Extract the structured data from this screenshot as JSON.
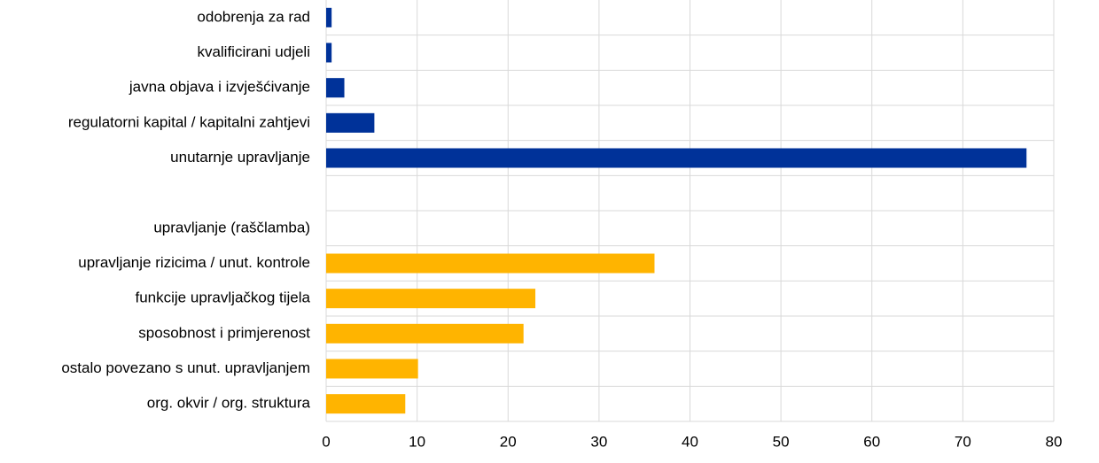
{
  "chart_data": {
    "type": "bar",
    "orientation": "horizontal",
    "categories": [
      "odobrenja za rad",
      "kvalificirani udjeli",
      "javna objava i izvješćivanje",
      "regulatorni kapital / kapitalni zahtjevi",
      "unutarnje upravljanje",
      null,
      "upravljanje (raščlamba)",
      "upravljanje rizicima / unut. kontrole",
      "funkcije upravljačkog tijela",
      "sposobnost i primjerenost",
      "ostalo povezano s unut. upravljanjem",
      "org. okvir / org. struktura"
    ],
    "values": [
      0.6,
      0.6,
      2.0,
      5.3,
      77.0,
      null,
      null,
      36.1,
      23.0,
      21.7,
      10.1,
      8.7
    ],
    "colors": [
      "#003299",
      "#003299",
      "#003299",
      "#003299",
      "#003299",
      null,
      null,
      "#ffb400",
      "#ffb400",
      "#ffb400",
      "#ffb400",
      "#ffb400"
    ],
    "xlim": [
      0,
      80
    ],
    "xticks": [
      0,
      10,
      20,
      30,
      40,
      50,
      60,
      70,
      80
    ],
    "grid": true
  }
}
